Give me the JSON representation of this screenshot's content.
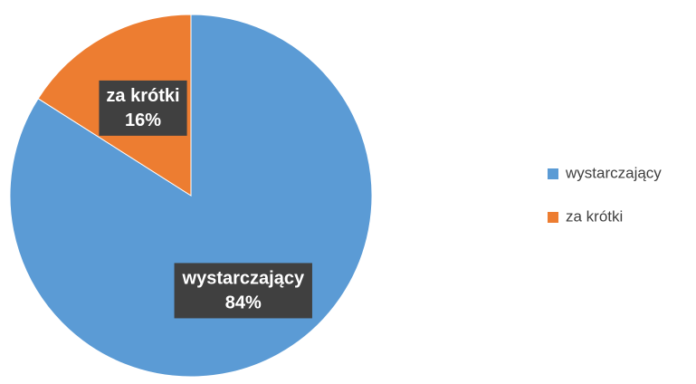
{
  "chart_data": {
    "type": "pie",
    "categories": [
      "wystarczający",
      "za krótki"
    ],
    "values": [
      84,
      16
    ],
    "value_labels": [
      "84%",
      "16%"
    ],
    "colors": [
      "#5b9bd5",
      "#ed7d31"
    ],
    "legend": "right"
  }
}
